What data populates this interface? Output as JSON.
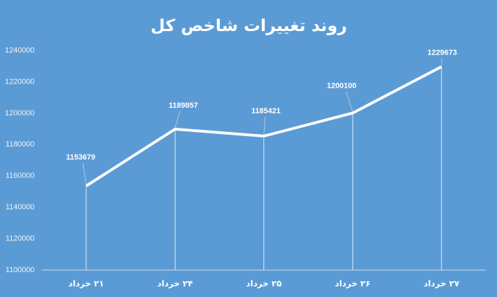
{
  "chart_data": {
    "type": "line",
    "title": "روند تغییرات شاخص کل",
    "categories": [
      "۲۱ خرداد",
      "۲۴ خرداد",
      "۲۵ خرداد",
      "۲۶ خرداد",
      "۲۷ خرداد"
    ],
    "values": [
      1153679,
      1189857,
      1185421,
      1200100,
      1229673
    ],
    "color": "#ffffff",
    "ylim": [
      1100000,
      1240000
    ],
    "yticks": [
      1100000,
      1120000,
      1140000,
      1160000,
      1180000,
      1200000,
      1220000,
      1240000
    ],
    "grid": false
  }
}
